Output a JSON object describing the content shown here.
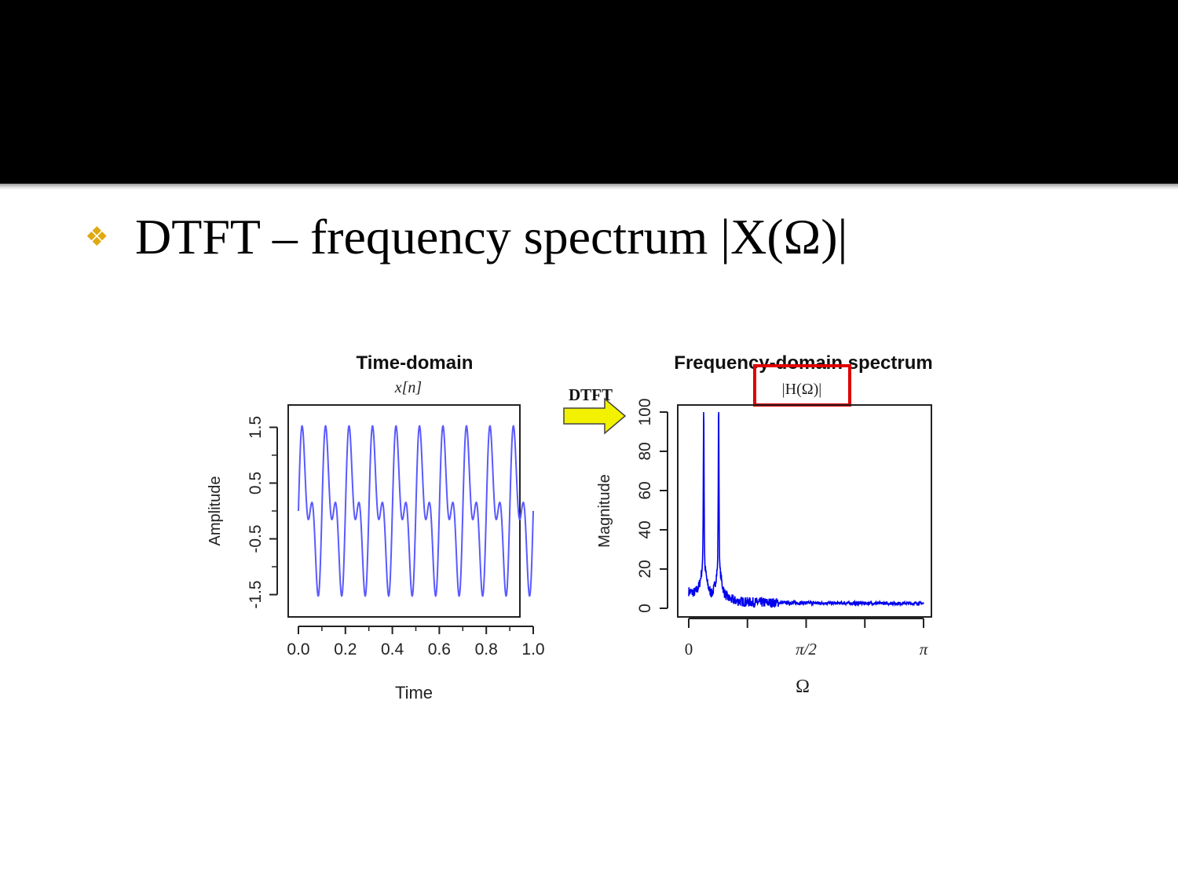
{
  "slide": {
    "bullet_icon": "diamond-four-bullet-icon",
    "bullet_text": "DTFT – frequency spectrum",
    "bullet_math": "|X(Ω)|",
    "colors": {
      "bullet": "#e0a912",
      "title_bar": "#000000",
      "signal": "#5a5aff",
      "spectrum": "#0000ee",
      "highlight": "#e00000",
      "arrow": "#f2f200"
    }
  },
  "arrow_label": "DTFT",
  "chart_data": [
    {
      "type": "line",
      "title": "Time-domain",
      "subtitle": "x[n]",
      "xlabel": "Time",
      "ylabel": "Amplitude",
      "xlim": [
        0.0,
        1.0
      ],
      "ylim": [
        -1.9,
        1.9
      ],
      "x_ticks": [
        "0.0",
        "0.2",
        "0.4",
        "0.6",
        "0.8",
        "1.0"
      ],
      "y_ticks": [
        "-1.5",
        "-0.5",
        "0.5",
        "1.5"
      ],
      "series": [
        {
          "components": [
            {
              "freq": 10,
              "amp": 1.0
            },
            {
              "freq": 20,
              "amp": 0.75
            }
          ],
          "x_range": [
            0.0,
            1.0
          ]
        }
      ],
      "grid": false
    },
    {
      "type": "line",
      "title": "Frequency-domain spectrum",
      "subtitle": "|H(Ω)|",
      "xlabel": "Ω",
      "ylabel": "Magnitude",
      "xlim": [
        0,
        3.14159
      ],
      "ylim": [
        0,
        100
      ],
      "x_ticks": [
        "0",
        "π/2",
        "π"
      ],
      "y_ticks": [
        "0",
        "20",
        "40",
        "60",
        "80",
        "100"
      ],
      "peaks": [
        {
          "omega": 0.2,
          "magnitude": 100
        },
        {
          "omega": 0.4,
          "magnitude": 100
        }
      ],
      "grid": false
    }
  ]
}
